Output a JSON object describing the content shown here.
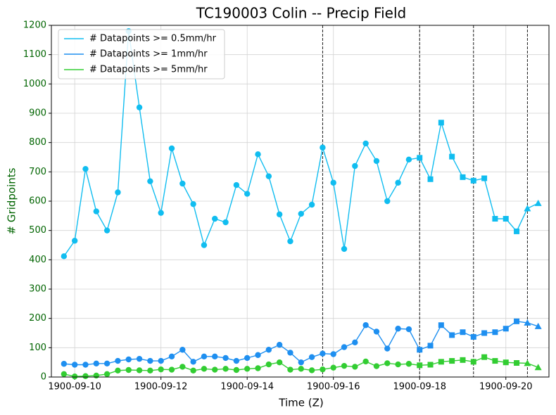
{
  "chart_data": {
    "type": "line",
    "title": "TC190003 Colin -- Precip Field",
    "xlabel": "Time (Z)",
    "ylabel": "# Gridpoints",
    "x": [
      "1900-09-09T18:00",
      "1900-09-10T00:00",
      "1900-09-10T06:00",
      "1900-09-10T12:00",
      "1900-09-10T18:00",
      "1900-09-11T00:00",
      "1900-09-11T06:00",
      "1900-09-11T12:00",
      "1900-09-11T18:00",
      "1900-09-12T00:00",
      "1900-09-12T06:00",
      "1900-09-12T12:00",
      "1900-09-12T18:00",
      "1900-09-13T00:00",
      "1900-09-13T06:00",
      "1900-09-13T12:00",
      "1900-09-13T18:00",
      "1900-09-14T00:00",
      "1900-09-14T06:00",
      "1900-09-14T12:00",
      "1900-09-14T18:00",
      "1900-09-15T00:00",
      "1900-09-15T06:00",
      "1900-09-15T12:00",
      "1900-09-15T18:00",
      "1900-09-16T00:00",
      "1900-09-16T06:00",
      "1900-09-16T12:00",
      "1900-09-16T18:00",
      "1900-09-17T00:00",
      "1900-09-17T06:00",
      "1900-09-17T12:00",
      "1900-09-17T18:00",
      "1900-09-18T00:00",
      "1900-09-18T06:00",
      "1900-09-18T12:00",
      "1900-09-18T18:00",
      "1900-09-19T00:00",
      "1900-09-19T06:00",
      "1900-09-19T12:00",
      "1900-09-19T18:00",
      "1900-09-20T00:00",
      "1900-09-20T06:00",
      "1900-09-20T12:00",
      "1900-09-20T18:00"
    ],
    "series": [
      {
        "name": "# Datapoints >= 0.5mm/hr",
        "color": "#10bdf0",
        "values": [
          412,
          465,
          710,
          565,
          500,
          630,
          1180,
          920,
          668,
          560,
          780,
          660,
          590,
          450,
          540,
          528,
          655,
          625,
          760,
          685,
          555,
          463,
          557,
          588,
          783,
          663,
          437,
          720,
          797,
          737,
          600,
          663,
          742,
          748,
          675,
          868,
          752,
          682,
          670,
          678,
          540,
          540,
          497,
          575,
          593
        ]
      },
      {
        "name": "# Datapoints >= 1mm/hr",
        "color": "#1e8ff0",
        "values": [
          45,
          42,
          42,
          46,
          46,
          55,
          60,
          62,
          55,
          55,
          70,
          93,
          52,
          70,
          70,
          65,
          55,
          65,
          75,
          93,
          110,
          83,
          50,
          68,
          80,
          78,
          102,
          118,
          177,
          155,
          97,
          165,
          163,
          93,
          107,
          177,
          143,
          153,
          137,
          150,
          153,
          165,
          190,
          185,
          173
        ]
      },
      {
        "name": "# Datapoints >= 5mm/hr",
        "color": "#32cd32",
        "values": [
          10,
          2,
          3,
          5,
          10,
          22,
          24,
          23,
          22,
          26,
          25,
          35,
          22,
          28,
          25,
          28,
          24,
          28,
          30,
          43,
          50,
          25,
          28,
          23,
          26,
          32,
          38,
          35,
          53,
          37,
          47,
          43,
          45,
          40,
          42,
          52,
          55,
          58,
          52,
          68,
          55,
          50,
          48,
          47,
          33
        ]
      }
    ],
    "xlim": [
      "1900-09-09T11:00",
      "1900-09-21T00:00"
    ],
    "xticks": [
      "1900-09-10",
      "1900-09-12",
      "1900-09-14",
      "1900-09-16",
      "1900-09-18",
      "1900-09-20"
    ],
    "ylim": [
      0,
      1200
    ],
    "yticks": [
      0,
      100,
      200,
      300,
      400,
      500,
      600,
      700,
      800,
      900,
      1000,
      1100,
      1200
    ],
    "vlines": [
      "1900-09-15T18:00",
      "1900-09-18T00:00",
      "1900-09-19T06:00",
      "1900-09-20T12:00"
    ],
    "marker_segments": [
      "circle",
      "circle",
      "square",
      "square",
      "triangle"
    ],
    "tick_label_color": "#006400",
    "grid": true,
    "legend": "upper left"
  }
}
